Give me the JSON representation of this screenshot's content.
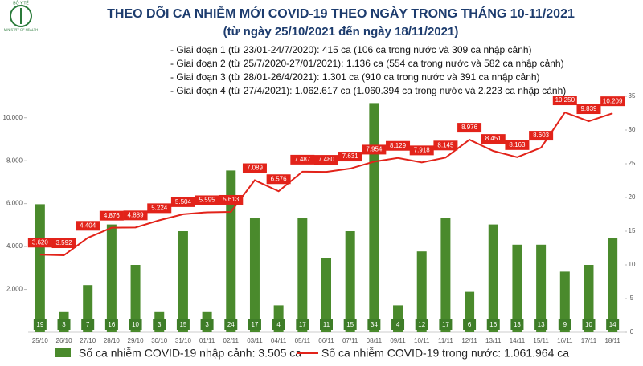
{
  "logo": [
    "BỘ Y TẾ",
    "MINISTRY OF HEALTH"
  ],
  "chart_data": {
    "type": "bar",
    "title": "THEO DÕI CA NHIỄM MỚI COVID-19 THEO NGÀY TRONG THÁNG 10-11/2021",
    "subtitle": "(từ ngày 25/10/2021 đến ngày 18/11/2021)",
    "annotations": [
      "- Giai đoạn 1 (từ 23/01-24/7/2020): 415 ca (106 ca trong nước và 309 ca nhập cảnh)",
      "- Giai đoạn 2 (từ 25/7/2020-27/01/2021): 1.136 ca (554 ca trong nước và 582 ca nhập cảnh)",
      "- Giai đoạn 3 (từ 28/01-26/4/2021): 1.301 ca (910 ca trong nước và 391 ca nhập cảnh)",
      "- Giai đoạn 4 (từ 27/4/2021): 1.062.617 ca (1.060.394 ca trong nước và 2.223 ca nhập cảnh)"
    ],
    "categories": [
      "25/10",
      "26/10",
      "27/10",
      "28/10",
      "29/10",
      "30/10",
      "31/10",
      "01/11",
      "02/11",
      "03/11",
      "04/11",
      "05/11",
      "06/11",
      "07/11",
      "08/11",
      "09/11",
      "10/11",
      "11/11",
      "12/11",
      "13/11",
      "14/11",
      "15/11",
      "16/11",
      "17/11",
      "18/11"
    ],
    "series": [
      {
        "name": "Số ca nhiễm COVID-19 nhập cảnh: 3.505 ca",
        "type": "bar",
        "axis": "y2",
        "color": "#4a8a2c",
        "values": [
          19,
          3,
          7,
          16,
          10,
          3,
          15,
          3,
          24,
          17,
          4,
          17,
          11,
          15,
          34,
          4,
          12,
          17,
          6,
          16,
          13,
          13,
          9,
          10,
          14
        ]
      },
      {
        "name": "Số ca nhiễm COVID-19 trong nước: 1.061.964 ca",
        "type": "line",
        "axis": "y",
        "color": "#e2231a",
        "values": [
          3620,
          3592,
          4404,
          4876,
          4889,
          5224,
          5504,
          5595,
          5613,
          7089,
          6576,
          7487,
          7480,
          7631,
          7954,
          8129,
          7918,
          8145,
          8976,
          8451,
          8163,
          8603,
          10250,
          9839,
          10209
        ],
        "value_labels": [
          "3.620",
          "3.592",
          "4.404",
          "4.876",
          "4.889",
          "5.224",
          "5.504",
          "5.595",
          "5.613",
          "7.089",
          "6.576",
          "7.487",
          "7.480",
          "7.631",
          "7.954",
          "8.129",
          "7.918",
          "8.145",
          "8.976",
          "8.451",
          "8.163",
          "8.603",
          "10.250",
          "9.839",
          "10.209"
        ]
      }
    ],
    "ylim": [
      0,
      11000
    ],
    "yticks": [
      {
        "value": 2000,
        "label": "2.000"
      },
      {
        "value": 4000,
        "label": "4.000"
      },
      {
        "value": 6000,
        "label": "6.000"
      },
      {
        "value": 8000,
        "label": "8.000"
      },
      {
        "value": 10000,
        "label": "10.000"
      }
    ],
    "y2lim": [
      0,
      35
    ],
    "y2ticks": [
      0,
      5,
      10,
      15,
      20,
      25,
      30,
      35
    ]
  }
}
